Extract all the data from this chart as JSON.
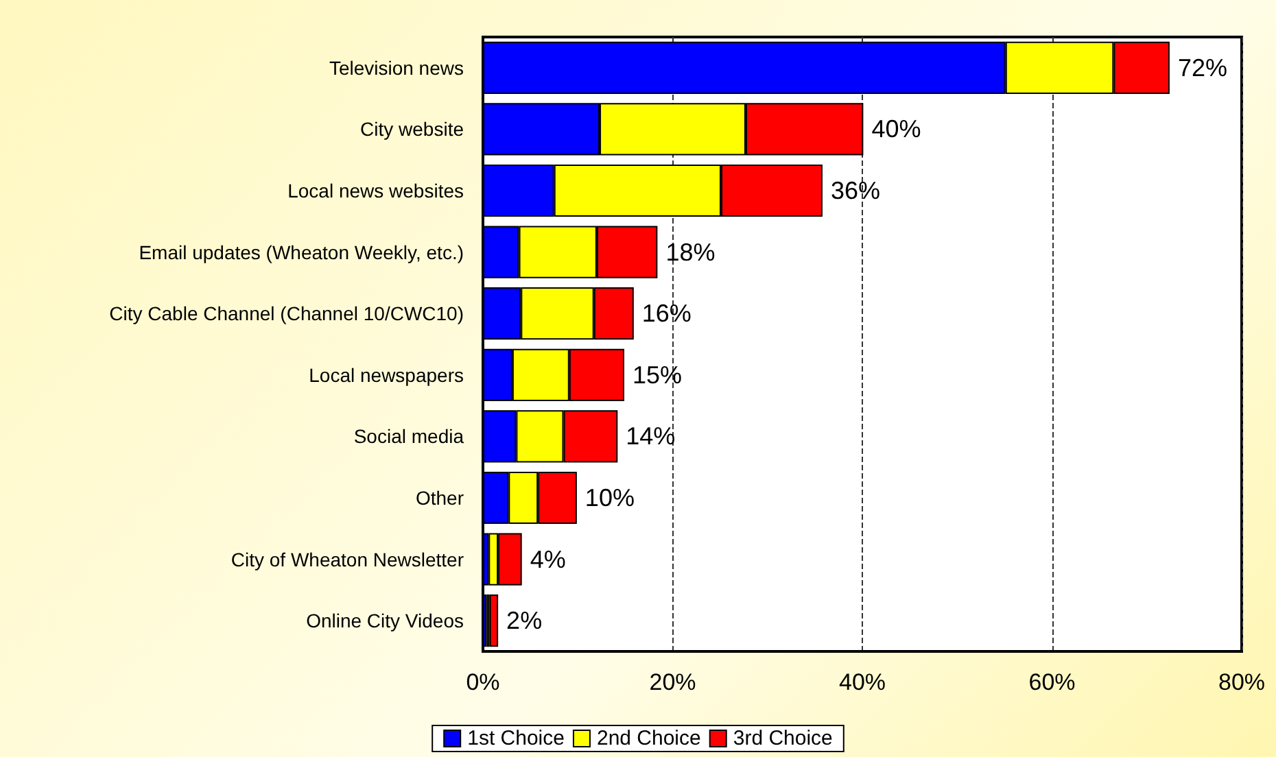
{
  "chart_data": {
    "type": "bar",
    "orientation": "horizontal",
    "stacked": true,
    "categories": [
      "Television news",
      "City website",
      "Local news websites",
      "Email updates (Wheaton Weekly, etc.)",
      "City Cable Channel (Channel 10/CWC10)",
      "Local newspapers",
      "Social media",
      "Other",
      "City of Wheaton Newsletter",
      "Online City Videos"
    ],
    "series": [
      {
        "name": "1st Choice",
        "color": "#0000ff",
        "values": [
          55.1,
          12.3,
          7.5,
          3.8,
          4.0,
          3.1,
          3.5,
          2.7,
          0.6,
          0.4
        ]
      },
      {
        "name": "2nd Choice",
        "color": "#ffff00",
        "values": [
          11.4,
          15.4,
          17.6,
          8.2,
          7.7,
          6.0,
          5.0,
          3.1,
          1.0,
          0.3
        ]
      },
      {
        "name": "3rd Choice",
        "color": "#ff0000",
        "values": [
          5.9,
          12.4,
          10.7,
          6.4,
          4.2,
          5.8,
          5.7,
          4.1,
          2.5,
          0.9
        ]
      }
    ],
    "totals": [
      "72%",
      "40%",
      "36%",
      "18%",
      "16%",
      "15%",
      "14%",
      "10%",
      "4%",
      "2%"
    ],
    "xlim": [
      0,
      80
    ],
    "xticks": [
      {
        "value": 0,
        "label": "0%"
      },
      {
        "value": 20,
        "label": "20%"
      },
      {
        "value": 40,
        "label": "40%"
      },
      {
        "value": 60,
        "label": "60%"
      },
      {
        "value": 80,
        "label": "80%"
      }
    ],
    "grid": "x",
    "legend": "bottom"
  }
}
